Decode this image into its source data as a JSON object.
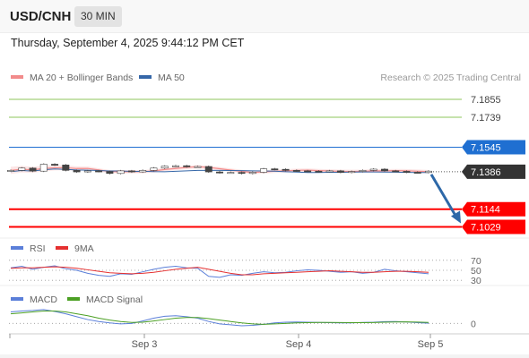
{
  "header": {
    "symbol": "USD/CNH",
    "interval": "30 MIN",
    "timestamp": "Thursday, September 4, 2025 9:44:12 PM CET"
  },
  "colors": {
    "ma20": "#f28b8b",
    "ma50": "#3567a8",
    "green_levels": "#8cc45b",
    "blue_level": "#1f6fd1",
    "red_level": "#ff0000",
    "current_tag": "#333333",
    "arrow": "#2d68a8",
    "rsi": "#5b7fd9",
    "rsi_ma": "#e53030",
    "macd": "#5b7fd9",
    "macd_signal": "#4ca024"
  },
  "chart_data": [
    {
      "type": "candlestick",
      "title": "",
      "legend": [
        {
          "name": "MA 20 + Bollinger Bands",
          "color": "#f28b8b"
        },
        {
          "name": "MA 50",
          "color": "#3567a8"
        }
      ],
      "credit": "Research © 2025 Trading Central",
      "ylim": [
        7.098,
        7.193
      ],
      "x_ticks": [
        "Sep 3",
        "Sep 4",
        "Sep 5"
      ],
      "levels": [
        {
          "value": 7.1855,
          "label": "7.1855",
          "kind": "resistance"
        },
        {
          "value": 7.1739,
          "label": "7.1739",
          "kind": "resistance"
        },
        {
          "value": 7.1545,
          "label": "7.1545",
          "kind": "pivot"
        },
        {
          "value": 7.1386,
          "label": "7.1386",
          "kind": "last-price"
        },
        {
          "value": 7.1144,
          "label": "7.1144",
          "kind": "support"
        },
        {
          "value": 7.1029,
          "label": "7.1029",
          "kind": "target"
        }
      ],
      "close_path": [
        7.1395,
        7.141,
        7.139,
        7.1435,
        7.143,
        7.1395,
        7.1385,
        7.1392,
        7.1388,
        7.1375,
        7.1392,
        7.1385,
        7.1395,
        7.141,
        7.1422,
        7.1425,
        7.1418,
        7.142,
        7.1385,
        7.138,
        7.1382,
        7.1375,
        7.1383,
        7.1405,
        7.1402,
        7.1395,
        7.1392,
        7.139,
        7.1388,
        7.1392,
        7.1382,
        7.1388,
        7.1395,
        7.1403,
        7.1392,
        7.1389,
        7.1383,
        7.1381,
        7.139
      ],
      "forecast": {
        "from": 7.1386,
        "to": 7.1029
      }
    },
    {
      "type": "line",
      "legend": [
        {
          "name": "RSI",
          "color": "#5b7fd9"
        },
        {
          "name": "9MA",
          "color": "#e53030"
        }
      ],
      "y_ticks": [
        70,
        50,
        30
      ],
      "ylim": [
        25,
        75
      ],
      "series": [
        {
          "name": "RSI",
          "values": [
            55,
            58,
            52,
            56,
            59,
            53,
            50,
            44,
            40,
            38,
            43,
            42,
            47,
            52,
            56,
            58,
            55,
            54,
            38,
            36,
            41,
            40,
            44,
            47,
            45,
            46,
            49,
            51,
            50,
            48,
            46,
            47,
            44,
            46,
            52,
            49,
            47,
            45,
            43
          ]
        },
        {
          "name": "9MA",
          "values": [
            54,
            55,
            55,
            56,
            57,
            56,
            54,
            51,
            48,
            45,
            44,
            43,
            44,
            46,
            49,
            52,
            54,
            56,
            52,
            48,
            44,
            41,
            41,
            43,
            44,
            45,
            46,
            47,
            48,
            49,
            48,
            47,
            46,
            46,
            47,
            48,
            48,
            47,
            46
          ]
        }
      ]
    },
    {
      "type": "line",
      "legend": [
        {
          "name": "MACD",
          "color": "#5b7fd9"
        },
        {
          "name": "MACD Signal",
          "color": "#4ca024"
        }
      ],
      "y_ticks": [
        0
      ],
      "ylim": [
        -1.0,
        2.0
      ],
      "series": [
        {
          "name": "MACD",
          "values": [
            1.2,
            1.3,
            1.35,
            1.45,
            1.25,
            1.0,
            0.7,
            0.4,
            0.2,
            0.05,
            -0.05,
            0.0,
            0.25,
            0.55,
            0.75,
            0.8,
            0.7,
            0.55,
            0.2,
            -0.05,
            -0.15,
            -0.25,
            -0.2,
            -0.1,
            0.05,
            0.12,
            0.15,
            0.12,
            0.1,
            0.08,
            0.06,
            0.05,
            0.1,
            0.12,
            0.18,
            0.2,
            0.15,
            0.08,
            0.02
          ]
        },
        {
          "name": "MACD Signal",
          "values": [
            1.0,
            1.1,
            1.2,
            1.3,
            1.3,
            1.2,
            1.0,
            0.8,
            0.55,
            0.35,
            0.2,
            0.1,
            0.12,
            0.25,
            0.4,
            0.55,
            0.62,
            0.62,
            0.5,
            0.35,
            0.2,
            0.05,
            -0.05,
            -0.1,
            -0.05,
            0.0,
            0.05,
            0.08,
            0.1,
            0.1,
            0.09,
            0.08,
            0.08,
            0.09,
            0.12,
            0.15,
            0.16,
            0.14,
            0.1
          ]
        }
      ]
    }
  ]
}
